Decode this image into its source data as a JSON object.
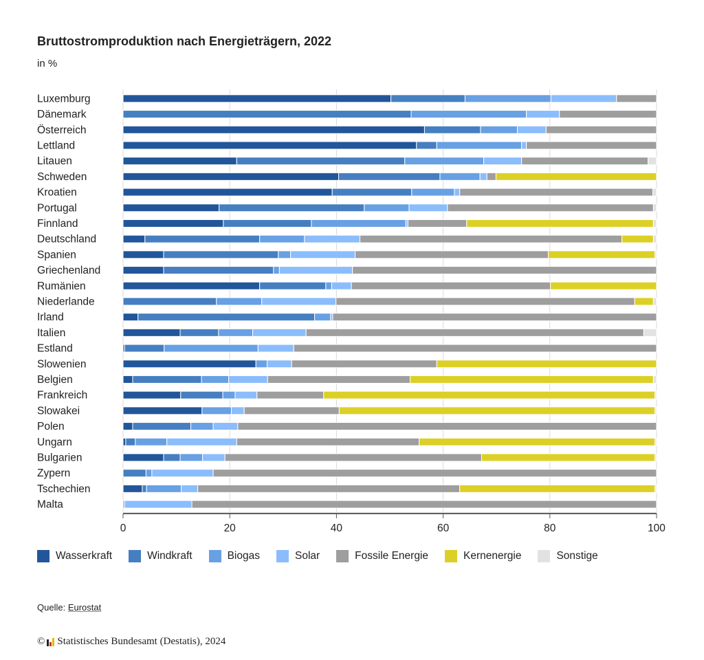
{
  "header": {
    "title": "Bruttostromproduktion nach Energieträgern, 2022",
    "subtitle": "in %"
  },
  "chart_data": {
    "type": "bar",
    "orientation": "horizontal",
    "stacked": true,
    "title": "Bruttostromproduktion nach Energieträgern, 2022",
    "subtitle": "in %",
    "xlabel": "",
    "ylabel": "",
    "xlim": [
      0,
      100
    ],
    "xticks": [
      0,
      20,
      40,
      60,
      80,
      100
    ],
    "grid": true,
    "legend_position": "bottom",
    "categories": [
      "Luxemburg",
      "Dänemark",
      "Österreich",
      "Lettland",
      "Litauen",
      "Schweden",
      "Kroatien",
      "Portugal",
      "Finnland",
      "Deutschland",
      "Spanien",
      "Griechenland",
      "Rumänien",
      "Niederlande",
      "Irland",
      "Italien",
      "Estland",
      "Slowenien",
      "Belgien",
      "Frankreich",
      "Slowakei",
      "Polen",
      "Ungarn",
      "Bulgarien",
      "Zypern",
      "Tschechien",
      "Malta"
    ],
    "series": [
      {
        "name": "Wasserkraft",
        "color": "#22569a",
        "values": [
          50.2,
          0,
          56.5,
          55.0,
          21.3,
          40.4,
          39.2,
          18.0,
          18.8,
          4.1,
          7.6,
          7.6,
          25.6,
          0,
          2.8,
          10.7,
          0.3,
          24.9,
          1.8,
          10.8,
          14.8,
          1.8,
          0.5,
          7.6,
          0,
          3.6,
          0
        ]
      },
      {
        "name": "Windkraft",
        "color": "#467fc1",
        "values": [
          13.9,
          54.0,
          10.5,
          3.8,
          31.5,
          19.0,
          14.9,
          27.2,
          16.5,
          21.5,
          21.5,
          20.6,
          12.4,
          17.5,
          33.1,
          7.2,
          7.4,
          0,
          12.9,
          7.9,
          0,
          10.9,
          1.8,
          3.1,
          4.3,
          0.8,
          0
        ]
      },
      {
        "name": "Biogas",
        "color": "#68a0e4",
        "values": [
          16.1,
          21.6,
          6.9,
          15.9,
          14.8,
          7.5,
          8.0,
          8.4,
          17.7,
          8.4,
          2.3,
          1.1,
          1.1,
          8.5,
          3.0,
          6.4,
          17.6,
          2.1,
          5.1,
          2.3,
          5.5,
          4.2,
          5.9,
          4.2,
          1.1,
          6.5,
          0.3
        ]
      },
      {
        "name": "Solar",
        "color": "#8bbdfc",
        "values": [
          12.3,
          6.2,
          5.4,
          0.9,
          7.1,
          1.3,
          1.0,
          7.2,
          0.4,
          10.4,
          12.1,
          13.7,
          3.7,
          13.9,
          0.4,
          10.0,
          6.7,
          4.6,
          7.3,
          4.1,
          2.4,
          4.6,
          13.1,
          4.2,
          11.5,
          3.1,
          12.6
        ]
      },
      {
        "name": "Fossile Energie",
        "color": "#9e9e9e",
        "values": [
          7.5,
          18.2,
          20.7,
          24.4,
          23.7,
          1.7,
          36.2,
          38.6,
          11.0,
          49.1,
          36.2,
          57.0,
          37.3,
          56.0,
          60.7,
          63.3,
          68.0,
          27.2,
          26.7,
          12.5,
          17.8,
          78.5,
          34.2,
          48.1,
          83.1,
          49.1,
          87.1
        ]
      },
      {
        "name": "Kernenergie",
        "color": "#dcd026",
        "values": [
          0,
          0,
          0,
          0,
          0,
          30.1,
          0,
          0,
          35.0,
          5.9,
          20.0,
          0,
          19.9,
          3.5,
          0,
          0,
          0,
          41.2,
          45.6,
          62.1,
          59.2,
          0,
          44.2,
          32.5,
          0,
          36.6,
          0
        ]
      },
      {
        "name": "Sonstige",
        "color": "#e2e2e2",
        "values": [
          0,
          0,
          0,
          0,
          1.6,
          0,
          0.7,
          0.6,
          0.6,
          0.6,
          0.3,
          0,
          0,
          0.6,
          0,
          2.4,
          0,
          0,
          0.6,
          0.3,
          0.3,
          0,
          0.3,
          0.3,
          0,
          0.3,
          0
        ]
      }
    ]
  },
  "legend": {
    "items": [
      {
        "label": "Wasserkraft",
        "color": "#22569a"
      },
      {
        "label": "Windkraft",
        "color": "#467fc1"
      },
      {
        "label": "Biogas",
        "color": "#68a0e4"
      },
      {
        "label": "Solar",
        "color": "#8bbdfc"
      },
      {
        "label": "Fossile Energie",
        "color": "#9e9e9e"
      },
      {
        "label": "Kernenergie",
        "color": "#dcd026"
      },
      {
        "label": "Sonstige",
        "color": "#e2e2e2"
      }
    ]
  },
  "footer": {
    "source_prefix": "Quelle: ",
    "source_link": "Eurostat",
    "copyright_symbol": "©",
    "copyright_text": "Statistisches Bundesamt (Destatis), 2024"
  }
}
